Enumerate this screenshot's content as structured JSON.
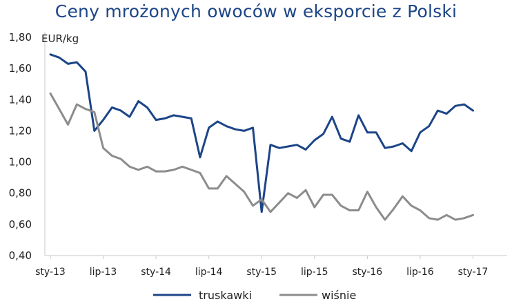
{
  "chart_data": {
    "type": "line",
    "title": "Ceny mrożonych owoców w eksporcie z Polski",
    "ylabel": "EUR/kg",
    "xlabel": "",
    "ylim": [
      0.4,
      1.8
    ],
    "yticks": [
      "0,40",
      "0,60",
      "0,80",
      "1,00",
      "1,20",
      "1,40",
      "1,60",
      "1,80"
    ],
    "xtick_labels": [
      "sty-13",
      "lip-13",
      "sty-14",
      "lip-14",
      "sty-15",
      "lip-15",
      "sty-16",
      "lip-16",
      "sty-17"
    ],
    "x_start": "sty-13",
    "x_end": "lut-17",
    "legend_position": "bottom",
    "series": [
      {
        "name": "truskawki",
        "color": "#1c4587",
        "values": [
          1.69,
          1.67,
          1.63,
          1.64,
          1.58,
          1.2,
          1.27,
          1.35,
          1.33,
          1.29,
          1.39,
          1.35,
          1.27,
          1.28,
          1.3,
          1.29,
          1.28,
          1.03,
          1.22,
          1.26,
          1.23,
          1.21,
          1.2,
          1.22,
          0.68,
          1.11,
          1.09,
          1.1,
          1.11,
          1.08,
          1.14,
          1.18,
          1.29,
          1.15,
          1.13,
          1.3,
          1.19,
          1.19,
          1.09,
          1.1,
          1.12,
          1.07,
          1.19,
          1.23,
          1.33,
          1.31,
          1.36,
          1.37,
          1.33
        ]
      },
      {
        "name": "wiśnie",
        "color": "#8c8c8c",
        "values": [
          1.44,
          1.34,
          1.24,
          1.37,
          1.34,
          1.32,
          1.09,
          1.04,
          1.02,
          0.97,
          0.95,
          0.97,
          0.94,
          0.94,
          0.95,
          0.97,
          0.95,
          0.93,
          0.83,
          0.83,
          0.91,
          0.86,
          0.81,
          0.72,
          0.76,
          0.68,
          0.74,
          0.8,
          0.77,
          0.82,
          0.71,
          0.79,
          0.79,
          0.72,
          0.69,
          0.69,
          0.81,
          0.71,
          0.63,
          0.7,
          0.78,
          0.72,
          0.69,
          0.64,
          0.63,
          0.66,
          0.63,
          0.64,
          0.66
        ]
      }
    ]
  }
}
